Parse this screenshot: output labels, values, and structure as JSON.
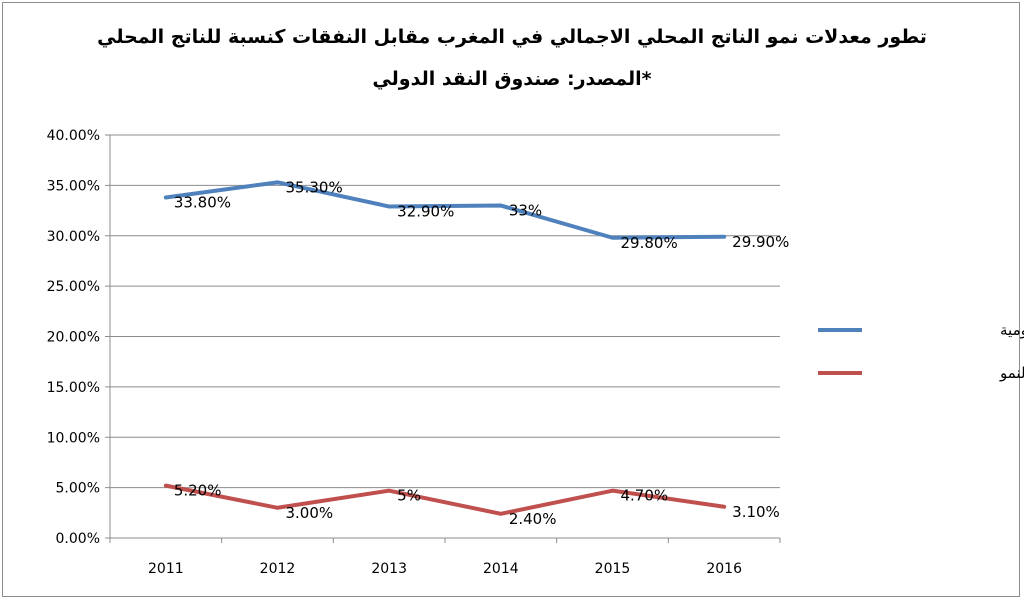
{
  "chart_data": {
    "type": "line",
    "title": "تطور معدلات نمو الناتج المحلي الاجمالي في المغرب مقابل النفقات كنسبة للناتج المحلي",
    "subtitle": "*المصدر: صندوق النقد الدولي",
    "xlabel": "",
    "ylabel": "",
    "categories": [
      "2011",
      "2012",
      "2013",
      "2014",
      "2015",
      "2016"
    ],
    "ylim": [
      0,
      40
    ],
    "yticks": [
      "0.00%",
      "5.00%",
      "10.00%",
      "15.00%",
      "20.00%",
      "25.00%",
      "30.00%",
      "35.00%",
      "40.00%"
    ],
    "grid": "horizontal",
    "legend_position": "right",
    "series": [
      {
        "name": "النفقات الحكومية",
        "color": "#4f81bd",
        "values": [
          33.8,
          35.3,
          32.9,
          33,
          29.8,
          29.9
        ],
        "labels": [
          "33.80%",
          "35.30%",
          "32.90%",
          "33%",
          "29.80%",
          "29.90%"
        ]
      },
      {
        "name": "النمو",
        "color": "#c0504d",
        "values": [
          5.2,
          3.0,
          4.7,
          2.4,
          4.7,
          3.1
        ],
        "labels": [
          "5.20%",
          "3.00%",
          "5%",
          "2.40%",
          "4.70%",
          "3.10%"
        ]
      }
    ]
  }
}
